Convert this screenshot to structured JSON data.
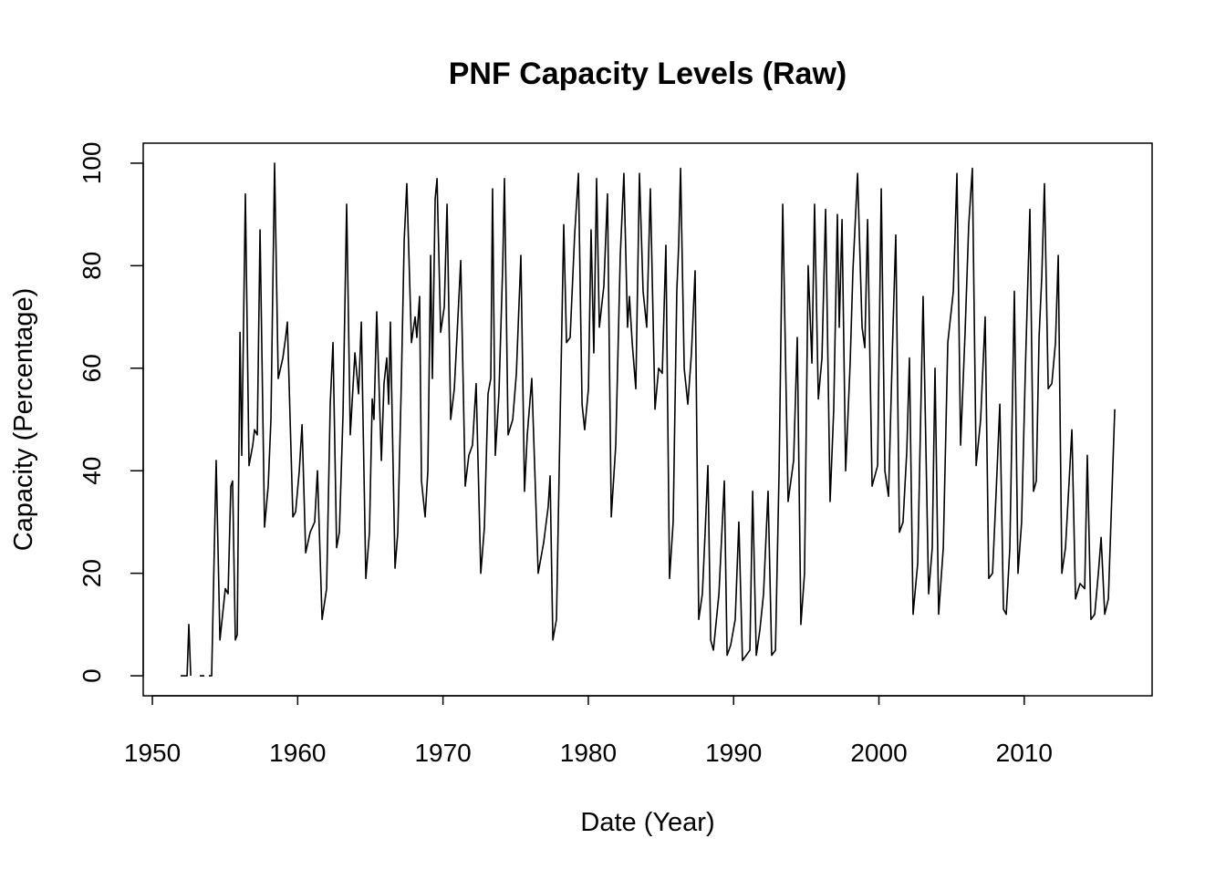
{
  "chart_data": {
    "type": "line",
    "title": "PNF Capacity Levels (Raw)",
    "x_label": "Date (Year)",
    "y_label": "Capacity (Percentage)",
    "color": "#000000",
    "xlim": [
      1949.37,
      2018.8
    ],
    "ylim": [
      -3.9,
      103.9
    ],
    "xticks": [
      1950,
      1960,
      1970,
      1980,
      1990,
      2000,
      2010
    ],
    "yticks": [
      0,
      20,
      40,
      60,
      80,
      100
    ],
    "x": [
      1951.95,
      1952.39,
      1952.51,
      1952.64,
      1952.9,
      1953.26,
      1953.58,
      1953.75,
      1953.89,
      1954.08,
      1954.39,
      1954.65,
      1955.02,
      1955.21,
      1955.4,
      1955.52,
      1955.71,
      1955.84,
      1956.03,
      1956.15,
      1956.4,
      1956.65,
      1956.91,
      1957.03,
      1957.22,
      1957.41,
      1957.72,
      1957.97,
      1958.16,
      1958.41,
      1958.66,
      1958.98,
      1959.17,
      1959.29,
      1959.48,
      1959.67,
      1959.86,
      1960.11,
      1960.3,
      1960.55,
      1960.86,
      1961.17,
      1961.36,
      1961.68,
      1961.99,
      1962.24,
      1962.43,
      1962.68,
      1962.87,
      1963.12,
      1963.37,
      1963.62,
      1963.94,
      1964.19,
      1964.38,
      1964.69,
      1964.94,
      1965.13,
      1965.25,
      1965.44,
      1965.76,
      1965.94,
      1966.13,
      1966.26,
      1966.38,
      1966.7,
      1966.89,
      1967.14,
      1967.33,
      1967.51,
      1967.83,
      1968.08,
      1968.2,
      1968.39,
      1968.52,
      1968.77,
      1968.96,
      1969.15,
      1969.27,
      1969.46,
      1969.59,
      1969.84,
      1970.09,
      1970.28,
      1970.53,
      1970.78,
      1971.03,
      1971.22,
      1971.53,
      1971.78,
      1972.03,
      1972.28,
      1972.6,
      1972.85,
      1973.1,
      1973.29,
      1973.41,
      1973.6,
      1973.85,
      1974.11,
      1974.23,
      1974.48,
      1974.8,
      1975.05,
      1975.36,
      1975.61,
      1975.8,
      1976.11,
      1976.55,
      1976.93,
      1977.24,
      1977.37,
      1977.56,
      1977.81,
      1978.06,
      1978.31,
      1978.5,
      1978.75,
      1979.06,
      1979.32,
      1979.57,
      1979.75,
      1980.01,
      1980.19,
      1980.38,
      1980.57,
      1980.76,
      1981.07,
      1981.32,
      1981.58,
      1981.89,
      1982.2,
      1982.45,
      1982.7,
      1982.83,
      1983.02,
      1983.27,
      1983.52,
      1983.77,
      1984.02,
      1984.27,
      1984.59,
      1984.84,
      1985.09,
      1985.34,
      1985.59,
      1985.84,
      1986.09,
      1986.22,
      1986.35,
      1986.6,
      1986.85,
      1987.1,
      1987.35,
      1987.6,
      1987.85,
      1988.04,
      1988.23,
      1988.42,
      1988.61,
      1988.99,
      1989.36,
      1989.55,
      1989.8,
      1990.11,
      1990.36,
      1990.61,
      1990.87,
      1991.12,
      1991.31,
      1991.56,
      1991.81,
      1992.06,
      1992.37,
      1992.62,
      1992.88,
      1993.13,
      1993.38,
      1993.75,
      1994.13,
      1994.38,
      1994.63,
      1994.88,
      1995.13,
      1995.39,
      1995.57,
      1995.83,
      1996.08,
      1996.33,
      1996.64,
      1996.89,
      1997.14,
      1997.27,
      1997.46,
      1997.71,
      1998.02,
      1998.21,
      1998.53,
      1998.84,
      1999.03,
      1999.22,
      1999.53,
      1999.91,
      2000.16,
      2000.41,
      2000.66,
      2000.97,
      2001.16,
      2001.41,
      2001.66,
      2001.92,
      2002.1,
      2002.35,
      2002.67,
      2003.04,
      2003.42,
      2003.67,
      2003.86,
      2004.11,
      2004.43,
      2004.74,
      2005.12,
      2005.37,
      2005.62,
      2005.93,
      2006.18,
      2006.43,
      2006.69,
      2007.0,
      2007.31,
      2007.56,
      2007.82,
      2008.07,
      2008.32,
      2008.57,
      2008.76,
      2009.01,
      2009.32,
      2009.57,
      2009.82,
      2010.08,
      2010.39,
      2010.64,
      2010.83,
      2011.02,
      2011.21,
      2011.39,
      2011.65,
      2011.9,
      2012.15,
      2012.34,
      2012.59,
      2012.84,
      2013.09,
      2013.28,
      2013.53,
      2013.84,
      2014.16,
      2014.34,
      2014.59,
      2014.85,
      2015.1,
      2015.29,
      2015.54,
      2015.79,
      2016.23
    ],
    "values": [
      0,
      0,
      10,
      0,
      null,
      0,
      0,
      null,
      0,
      0,
      42,
      7,
      17,
      16,
      37,
      38,
      7,
      8,
      67,
      43,
      94,
      41,
      45,
      48,
      47,
      87,
      29,
      37,
      50,
      100,
      58,
      62,
      66,
      69,
      50,
      31,
      32,
      40,
      49,
      24,
      28,
      30,
      40,
      11,
      17,
      53,
      65,
      25,
      28,
      51,
      92,
      47,
      63,
      55,
      69,
      19,
      28,
      54,
      50,
      71,
      42,
      57,
      62,
      53,
      69,
      21,
      28,
      58,
      85,
      96,
      65,
      70,
      66,
      74,
      38,
      31,
      40,
      82,
      58,
      93,
      97,
      67,
      72,
      92,
      50,
      56,
      70,
      81,
      37,
      43,
      45,
      57,
      20,
      29,
      55,
      58,
      95,
      43,
      55,
      80,
      97,
      47,
      50,
      59,
      82,
      36,
      47,
      58,
      20,
      26,
      33,
      39,
      7,
      11,
      50,
      88,
      65,
      66,
      86,
      98,
      53,
      48,
      56,
      87,
      63,
      97,
      68,
      76,
      94,
      31,
      45,
      82,
      98,
      68,
      74,
      65,
      56,
      98,
      75,
      68,
      95,
      52,
      60,
      59,
      84,
      19,
      30,
      75,
      84,
      99,
      60,
      53,
      63,
      79,
      11,
      16,
      28,
      41,
      7,
      5,
      16,
      38,
      4,
      6,
      11,
      30,
      3,
      4,
      5,
      36,
      4,
      9,
      16,
      36,
      4,
      5,
      40,
      92,
      34,
      42,
      66,
      10,
      20,
      80,
      61,
      92,
      54,
      62,
      91,
      34,
      52,
      90,
      68,
      89,
      40,
      61,
      79,
      98,
      68,
      64,
      89,
      37,
      41,
      95,
      40,
      35,
      68,
      86,
      28,
      30,
      44,
      62,
      12,
      22,
      74,
      16,
      25,
      60,
      12,
      25,
      65,
      75,
      98,
      45,
      67,
      88,
      99,
      41,
      50,
      70,
      19,
      20,
      36,
      53,
      13,
      12,
      25,
      75,
      20,
      30,
      60,
      91,
      36,
      38,
      66,
      78,
      96,
      56,
      57,
      65,
      82,
      20,
      25,
      38,
      48,
      15,
      18,
      17,
      43,
      11,
      12,
      20,
      27,
      12,
      15,
      52
    ]
  }
}
